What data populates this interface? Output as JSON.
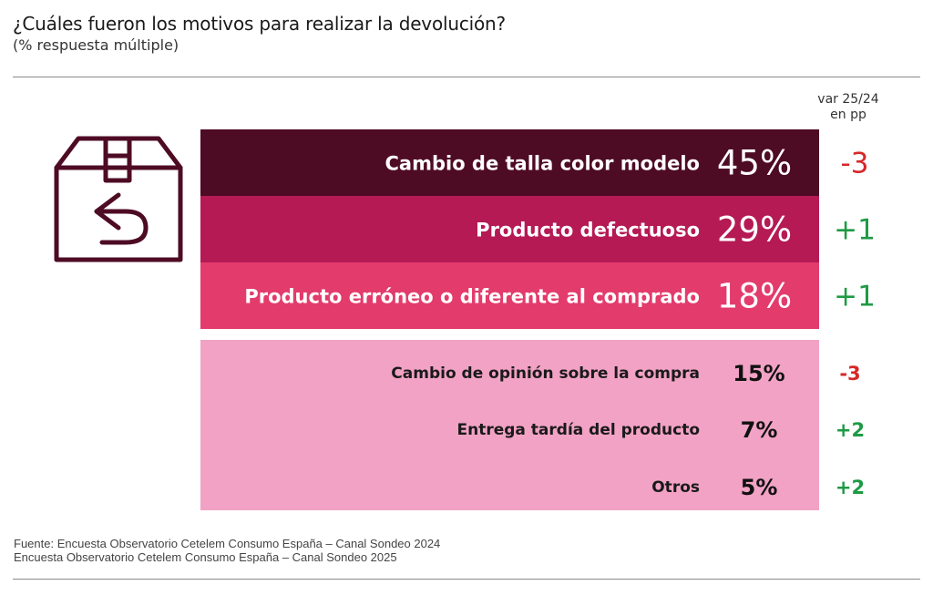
{
  "title": "¿Cuáles fueron los motivos para realizar la devolución?",
  "subtitle": "(% respuesta múltiple)",
  "var_header": {
    "line1": "var 25/24",
    "line2": "en pp"
  },
  "icon": "return-box-icon",
  "colors": {
    "bar1": "#4e0b24",
    "bar2": "#b51a54",
    "bar3": "#e33b6c",
    "panel": "#f2a2c5",
    "negative": "#d62828",
    "positive": "#1e9a45"
  },
  "chart_data": {
    "type": "table",
    "unit": "%",
    "categories": [
      "Cambio de talla color modelo",
      "Producto defectuoso",
      "Producto erróneo o diferente al comprado",
      "Cambio de opinión sobre la compra",
      "Entrega tardía del producto",
      "Otros"
    ],
    "values": [
      45,
      29,
      18,
      15,
      7,
      5
    ],
    "value_labels": [
      "45%",
      "29%",
      "18%",
      "15%",
      "7%",
      "5%"
    ],
    "variation": [
      -3,
      1,
      1,
      -3,
      2,
      2
    ],
    "variation_labels": [
      "-3",
      "+1",
      "+1",
      "-3",
      "+2",
      "+2"
    ]
  },
  "source": {
    "line1": "Fuente: Encuesta Observatorio Cetelem Consumo España – Canal Sondeo 2024",
    "line2": "Encuesta Observatorio Cetelem Consumo España – Canal Sondeo 2025"
  }
}
